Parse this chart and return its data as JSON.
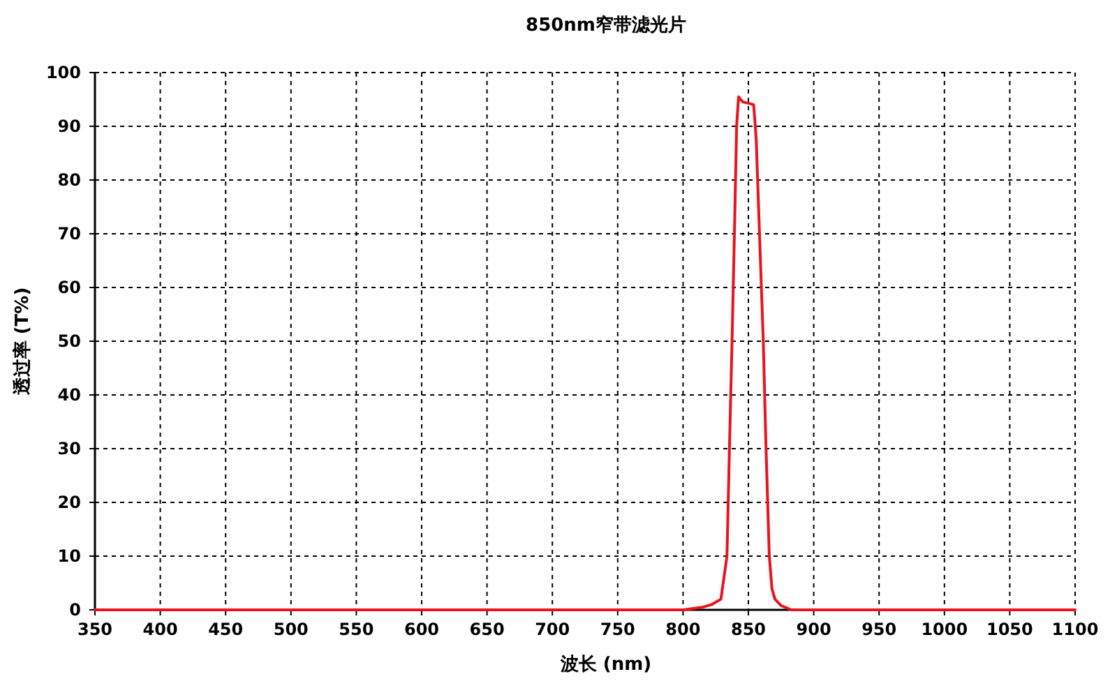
{
  "chart_data": {
    "type": "line",
    "title": "850nm窄带滤光片",
    "xlabel": "波长 (nm)",
    "ylabel": "透过率 (T%)",
    "xlim": [
      350,
      1100
    ],
    "xticks": [
      350,
      400,
      450,
      500,
      550,
      600,
      650,
      700,
      750,
      800,
      850,
      900,
      950,
      1000,
      1050,
      1100
    ],
    "ylim": [
      0,
      100
    ],
    "yticks": [
      0,
      10,
      20,
      30,
      40,
      50,
      60,
      70,
      80,
      90,
      100
    ],
    "grid": true,
    "line_style": "solid",
    "marker": "none",
    "series": [
      {
        "color": "#e8141e",
        "x": [
          350,
          800,
          815,
          822,
          829,
          833.6,
          835.5,
          837.5,
          839.3,
          841,
          842.5,
          844,
          846,
          850,
          854,
          855,
          856,
          858.5,
          861.4,
          863.5,
          866,
          868,
          870.3,
          875,
          883,
          1100
        ],
        "values": [
          0,
          0,
          0.5,
          1,
          2,
          10,
          30,
          50,
          70,
          90,
          95.5,
          95,
          94.5,
          94.3,
          94,
          91,
          87.5,
          70,
          50,
          30,
          10,
          4,
          2,
          0.8,
          0,
          0
        ]
      }
    ]
  }
}
